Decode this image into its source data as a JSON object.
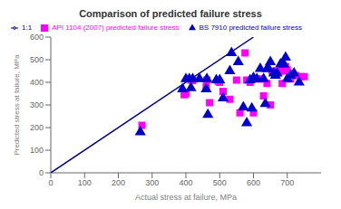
{
  "chart_data": {
    "type": "scatter",
    "title": "Comparison of predicted failure stress",
    "xlabel": "Actual stress at failure, MPa",
    "ylabel": "Predicted stress at failure, MPa",
    "xlim": [
      0,
      800
    ],
    "ylim": [
      0,
      600
    ],
    "xticks": [
      0,
      100,
      200,
      300,
      400,
      500,
      600,
      700
    ],
    "yticks": [
      0,
      100,
      200,
      300,
      400,
      500,
      600
    ],
    "grid": false,
    "legend": "upper left",
    "series": [
      {
        "name": "1:1",
        "type": "line",
        "color": "#00008B",
        "x": [
          0,
          600
        ],
        "values": [
          0,
          600
        ]
      },
      {
        "name": "API 1104 (2007) predicted failure stress",
        "type": "scatter",
        "marker": "square",
        "color": "#FF00FF",
        "x": [
          270,
          395,
          400,
          415,
          420,
          460,
          462,
          470,
          495,
          500,
          510,
          530,
          550,
          560,
          575,
          580,
          590,
          600,
          610,
          620,
          630,
          640,
          650,
          655,
          670,
          680,
          685,
          690,
          695,
          700,
          710,
          715,
          725,
          740,
          750
        ],
        "values": [
          210,
          345,
          350,
          410,
          408,
          380,
          410,
          310,
          405,
          400,
          360,
          325,
          410,
          265,
          530,
          410,
          400,
          265,
          415,
          415,
          340,
          395,
          300,
          450,
          450,
          450,
          395,
          450,
          470,
          455,
          415,
          440,
          430,
          425,
          425
        ]
      },
      {
        "name": "BS 7910 predicted failure stress",
        "type": "scatter",
        "marker": "triangle",
        "color": "#0000CD",
        "x": [
          265,
          390,
          400,
          410,
          415,
          420,
          440,
          460,
          462,
          465,
          490,
          500,
          510,
          530,
          535,
          555,
          570,
          580,
          590,
          595,
          600,
          610,
          620,
          630,
          635,
          640,
          645,
          650,
          660,
          665,
          670,
          680,
          690,
          695,
          700,
          710,
          720,
          735
        ],
        "values": [
          180,
          370,
          415,
          415,
          375,
          415,
          415,
          370,
          415,
          257,
          410,
          410,
          330,
          450,
          530,
          490,
          290,
          220,
          410,
          285,
          420,
          415,
          460,
          415,
          305,
          460,
          460,
          490,
          440,
          430,
          440,
          480,
          480,
          510,
          415,
          430,
          440,
          400
        ]
      }
    ]
  }
}
